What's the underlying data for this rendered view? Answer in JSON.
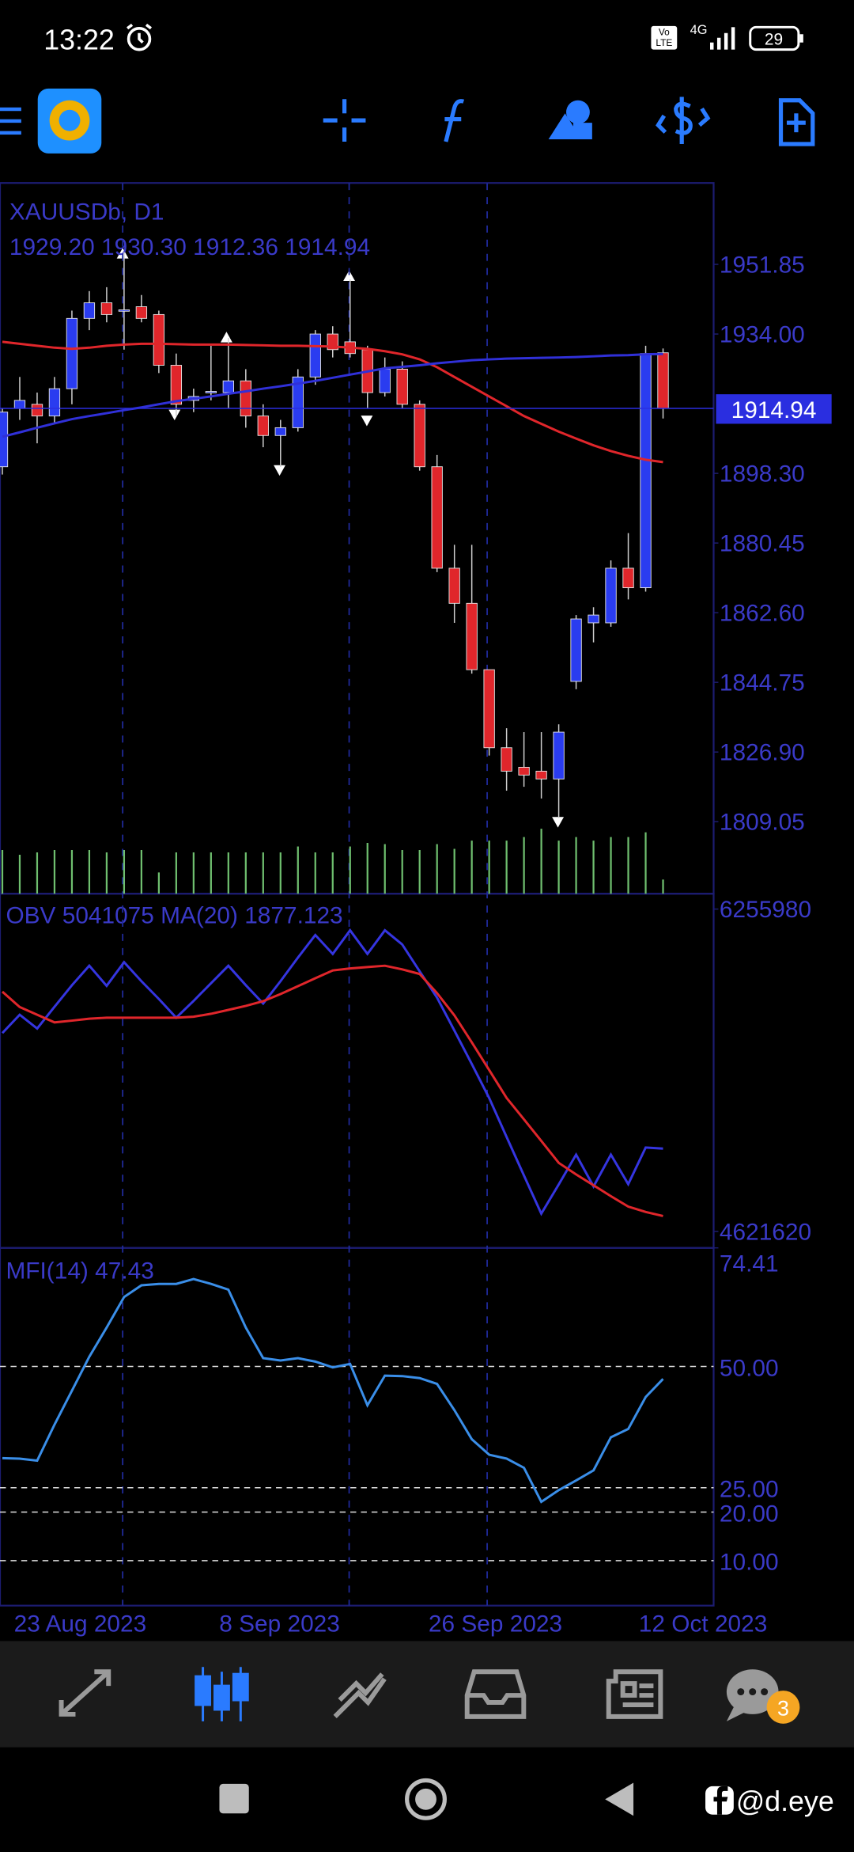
{
  "status_bar": {
    "time": "13:22",
    "volte_top": "Vo",
    "volte_bottom": "LTE",
    "network": "4G",
    "battery": "29"
  },
  "chart_data": [
    {
      "type": "candlestick",
      "title": "XAUUSDb, D1",
      "subtitle": "1929.20 1930.30 1912.36 1914.94",
      "open": [
        1900,
        1915,
        1916,
        1913,
        1920,
        1938,
        1942,
        1940,
        1941,
        1939,
        1926,
        1917,
        1919,
        1919,
        1922,
        1913,
        1908,
        1910,
        1923,
        1934,
        1932,
        1930,
        1919,
        1925,
        1916,
        1900,
        1874,
        1865,
        1848,
        1828,
        1823,
        1822,
        1820,
        1845,
        1860,
        1860,
        1874,
        1869,
        1929.2
      ],
      "high": [
        1915,
        1923,
        1919,
        1923,
        1940,
        1945,
        1946,
        1955,
        1944,
        1940,
        1929,
        1920,
        1931,
        1933,
        1925,
        1916,
        1912,
        1925,
        1935,
        1936,
        1948,
        1931,
        1928,
        1927,
        1917,
        1903,
        1880,
        1880,
        1848,
        1833,
        1832,
        1832,
        1834,
        1862,
        1864,
        1876,
        1883,
        1931,
        1930.3
      ],
      "low": [
        1898,
        1912,
        1906,
        1911,
        1916,
        1935,
        1937,
        1930,
        1937,
        1924,
        1913,
        1914,
        1917,
        1915,
        1910,
        1905,
        1900,
        1909,
        1921,
        1928,
        1928,
        1915,
        1918,
        1915,
        1899,
        1873,
        1860,
        1847,
        1826,
        1817,
        1818,
        1815,
        1810,
        1843,
        1855,
        1859,
        1866,
        1868,
        1912.36
      ],
      "close": [
        1914,
        1917,
        1913,
        1920,
        1938,
        1942,
        1939,
        1940.2,
        1938,
        1926,
        1916,
        1918,
        1919.3,
        1922,
        1913,
        1908,
        1910,
        1923,
        1934,
        1930,
        1929,
        1919,
        1925,
        1916,
        1900,
        1874,
        1865,
        1848,
        1828,
        1822,
        1821,
        1820,
        1832,
        1861,
        1862,
        1874,
        1869,
        1929,
        1914.94
      ],
      "up_color": "#2a3cf0",
      "down_color": "#e0262b",
      "wick_color": "#cfcfcf",
      "overlays": [
        {
          "color": "#e0262b",
          "values": [
            1932,
            1931.5,
            1931,
            1930.5,
            1930.2,
            1930.5,
            1931,
            1931.3,
            1931.5,
            1931.5,
            1931.4,
            1931.3,
            1931.3,
            1931.3,
            1931.2,
            1931.1,
            1931,
            1931,
            1930.9,
            1930.8,
            1930.5,
            1930.2,
            1929.6,
            1928.8,
            1927.5,
            1925.5,
            1923,
            1920.5,
            1918,
            1915.5,
            1913,
            1911,
            1909,
            1907.2,
            1905.5,
            1904,
            1902.8,
            1901.8,
            1901.2
          ]
        },
        {
          "color": "#3030d8",
          "values": [
            1907.7,
            1908.8,
            1910,
            1911.1,
            1912.2,
            1913,
            1913.7,
            1914.5,
            1915.2,
            1916,
            1916.8,
            1917.4,
            1918,
            1918.7,
            1919.3,
            1920,
            1920.6,
            1921.3,
            1922,
            1922.8,
            1923.6,
            1924.4,
            1925.2,
            1925.6,
            1926,
            1926.5,
            1926.9,
            1927.3,
            1927.5,
            1927.7,
            1927.8,
            1927.9,
            1928,
            1928.1,
            1928.3,
            1928.5,
            1928.6,
            1928.8,
            1928.9
          ]
        }
      ],
      "volume": {
        "color": "#6fbf6f",
        "values": [
          37,
          33,
          35,
          37,
          37,
          37,
          35,
          37,
          37,
          18,
          35,
          35,
          35,
          35,
          35,
          35,
          35,
          40,
          35,
          35,
          40,
          43,
          42,
          37,
          37,
          42,
          38,
          45,
          45,
          45,
          48,
          55,
          45,
          48,
          45,
          48,
          48,
          52,
          12
        ]
      },
      "last_price": 1914.94,
      "ylim": [
        1790.6,
        1972.7
      ],
      "yticks": [
        1951.85,
        {
          "value": 1934,
          "label": "1934.00"
        },
        {
          "value": 1898.3,
          "label": "1898.30"
        },
        1880.45,
        {
          "value": 1862.6,
          "label": "1862.60"
        },
        1844.75,
        {
          "value": 1826.9,
          "label": "1826.90"
        },
        1809.05
      ],
      "x_labels": [
        "23 Aug 2023",
        "8 Sep 2023",
        "26 Sep 2023",
        "12 Oct 2023"
      ]
    },
    {
      "type": "line",
      "title": "OBV 5041075 MA(20) 1877.123",
      "series": [
        {
          "color": "#3535e0",
          "values": [
            5627350,
            5720000,
            5650000,
            5760000,
            5870000,
            5968605,
            5866825,
            5986565,
            5890000,
            5800000,
            5705175,
            5790000,
            5880000,
            5968605,
            5870000,
            5777020,
            5890000,
            6010000,
            6124265,
            6028475,
            6148215,
            6028475,
            6148215,
            6076370,
            5940000,
            5806955,
            5640000,
            5470000,
            5298060,
            5100000,
            4905000,
            4711335,
            4860000,
            5010730,
            4849040,
            5010730,
            4861015,
            5046645,
            5041075
          ]
        },
        {
          "color": "#e0262b",
          "values": [
            5836890,
            5759060,
            5720000,
            5681225,
            5690000,
            5700000,
            5705175,
            5705175,
            5705175,
            5705175,
            5705175,
            5710000,
            5725000,
            5745000,
            5765000,
            5789000,
            5825000,
            5865000,
            5905000,
            5944650,
            5955000,
            5962000,
            5968605,
            5950000,
            5926700,
            5830000,
            5717175,
            5580000,
            5440000,
            5298060,
            5190000,
            5080000,
            4968830,
            4910000,
            4855000,
            4800000,
            4747310,
            4720000,
            4699415
          ]
        }
      ],
      "ylim": [
        4621620,
        6255980
      ],
      "yticks": [
        6255980,
        4621620
      ]
    },
    {
      "type": "line",
      "title": "MFI(14) 47.43",
      "series": [
        {
          "color": "#3a8ee8",
          "values": [
            31.1,
            31.0,
            30.6,
            38,
            45,
            52,
            58,
            64.3,
            66.7,
            67,
            67,
            68,
            67,
            65.8,
            58,
            51.7,
            51.2,
            51.7,
            51,
            49.8,
            50.5,
            42,
            48.1,
            48,
            47.6,
            46.4,
            41,
            35,
            31.8,
            31,
            29.1,
            22.1,
            24.5,
            26.5,
            28.6,
            35.4,
            37.1,
            43.7,
            47.43
          ]
        }
      ],
      "ylim": [
        0,
        74.41
      ],
      "yticks": [
        74.41,
        {
          "value": 50,
          "label": "50.00"
        },
        {
          "value": 25,
          "label": "25.00"
        },
        {
          "value": 20,
          "label": "20.00"
        },
        {
          "value": 10,
          "label": "10.00"
        }
      ],
      "grid": "dashed"
    }
  ],
  "bottom_nav": {
    "badge": "3"
  },
  "watermark": "@d.eye"
}
